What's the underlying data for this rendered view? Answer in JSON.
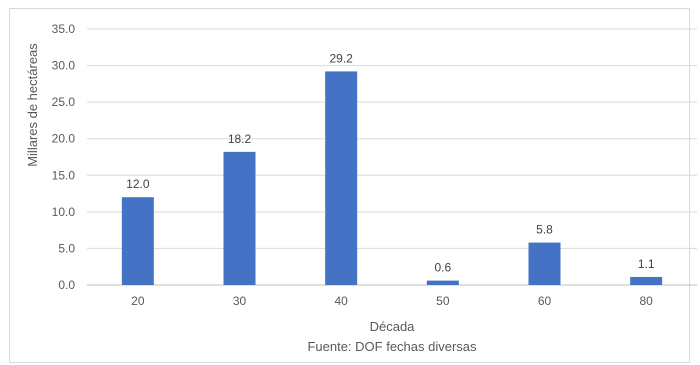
{
  "chart_data": {
    "type": "bar",
    "title": "",
    "xlabel": "Década",
    "ylabel": "Millares de hectáreas",
    "source": "Fuente: DOF fechas diversas",
    "categories": [
      "20",
      "30",
      "40",
      "50",
      "60",
      "80"
    ],
    "values": [
      12.0,
      18.2,
      29.2,
      0.6,
      5.8,
      1.1
    ],
    "data_labels": [
      "12.0",
      "18.2",
      "29.2",
      "0.6",
      "5.8",
      "1.1"
    ],
    "ylim": [
      0,
      35
    ],
    "yticks": [
      0,
      5,
      10,
      15,
      20,
      25,
      30,
      35
    ],
    "ytick_labels": [
      "0.0",
      "5.0",
      "10.0",
      "15.0",
      "20.0",
      "25.0",
      "30.0",
      "35.0"
    ],
    "grid": true,
    "legend": "none",
    "colors": {
      "bar": "#4472c4",
      "grid": "#d9d9d9",
      "text": "#595959",
      "label": "#404040"
    }
  }
}
